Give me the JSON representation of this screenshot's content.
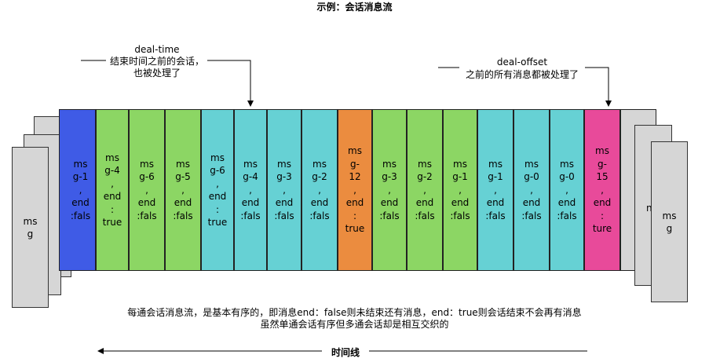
{
  "title": "示例：会话消息流",
  "annotations": {
    "deal_time": {
      "label": "deal-time",
      "text_line1": "结束时间之前的会话，",
      "text_line2": "也被处理了"
    },
    "deal_offset": {
      "label": "deal-offset",
      "text": "之前的所有消息都被处理了"
    }
  },
  "left_stack": {
    "front_text": "ms\ng",
    "behind_text": "ms\ng-1\n,\nend\n:fals"
  },
  "right_stack": {
    "front_text": "ms\ng",
    "partial_text": "n"
  },
  "messages": [
    {
      "text": "ms\ng-4\n,\nend\n:\ntrue",
      "color": "#8cd664"
    },
    {
      "text": "ms\ng-6\n,\nend\n:fals",
      "color": "#8cd664"
    },
    {
      "text": "ms\ng-5\n,\nend\n:fals",
      "color": "#8cd664"
    },
    {
      "text": "ms\ng-6\n,\nend\n:\ntrue",
      "color": "#66d1d4"
    },
    {
      "text": "ms\ng-4\n,\nend\n:fals",
      "color": "#66d1d4"
    },
    {
      "text": "ms\ng-3\n,\nend\n:fals",
      "color": "#66d1d4"
    },
    {
      "text": "ms\ng-2\n,\nend\n:fals",
      "color": "#66d1d4"
    },
    {
      "text": "ms\ng-\n12\n,\nend\n:\ntrue",
      "color": "#eb8c3f"
    },
    {
      "text": "ms\ng-3\n,\nend\n:fals",
      "color": "#8cd664"
    },
    {
      "text": "ms\ng-2\n,\nend\n:fals",
      "color": "#8cd664"
    },
    {
      "text": "ms\ng-1\n,\nend\n:fals",
      "color": "#8cd664"
    },
    {
      "text": "ms\ng-1\n,\nend\n:fals",
      "color": "#66d1d4"
    },
    {
      "text": "ms\ng-0\n,\nend\n:fals",
      "color": "#66d1d4"
    },
    {
      "text": "ms\ng-0\n,\nend\n:fals",
      "color": "#66d1d4"
    },
    {
      "text": "ms\ng-\n15\n,\nend\n:\nture",
      "color": "#e84a9a"
    }
  ],
  "blue_cell": {
    "text": "ms\ng-1\n,\nend\n:fals",
    "color": "#3f5be6"
  },
  "description": {
    "line1": "每通会话消息流，是基本有序的，即消息end：false则未结束还有消息，end：true则会话结束不会再有消息",
    "line2": "虽然单通会话有序但多通会话却是相互交织的"
  },
  "timeline_label": "时间线"
}
